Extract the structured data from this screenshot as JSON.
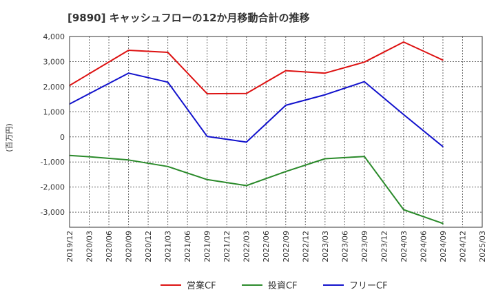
{
  "chart_data": {
    "type": "line",
    "title": "[9890]  キャッシュフローの12か月移動合計の推移",
    "ylabel": "(百万円)",
    "xlabel": "",
    "ylim": [
      -3600,
      4000
    ],
    "yticks": [
      -3000,
      -2000,
      -1000,
      0,
      1000,
      2000,
      3000,
      4000
    ],
    "ytick_labels": [
      "-3,000",
      "-2,000",
      "-1,000",
      "0",
      "1,000",
      "2,000",
      "3,000",
      "4,000"
    ],
    "x_ticks": [
      "2019/12",
      "2020/03",
      "2020/06",
      "2020/09",
      "2020/12",
      "2021/03",
      "2021/06",
      "2021/09",
      "2021/12",
      "2022/03",
      "2022/06",
      "2022/09",
      "2022/12",
      "2023/03",
      "2023/06",
      "2023/09",
      "2023/12",
      "2024/03",
      "2024/06",
      "2024/09",
      "2024/12",
      "2025/03"
    ],
    "grid": true,
    "legend_position": "bottom",
    "series": [
      {
        "name": "営業CF",
        "color": "#dd1111",
        "points": [
          {
            "x": "2019/12",
            "y": 2050
          },
          {
            "x": "2020/09",
            "y": 3450
          },
          {
            "x": "2021/03",
            "y": 3370
          },
          {
            "x": "2021/09",
            "y": 1720
          },
          {
            "x": "2022/03",
            "y": 1730
          },
          {
            "x": "2022/09",
            "y": 2640
          },
          {
            "x": "2023/03",
            "y": 2540
          },
          {
            "x": "2023/09",
            "y": 2980
          },
          {
            "x": "2024/03",
            "y": 3780
          },
          {
            "x": "2024/09",
            "y": 3060
          }
        ]
      },
      {
        "name": "投資CF",
        "color": "#2a8a2a",
        "points": [
          {
            "x": "2019/12",
            "y": -740
          },
          {
            "x": "2020/03",
            "y": -790
          },
          {
            "x": "2020/09",
            "y": -920
          },
          {
            "x": "2021/03",
            "y": -1180
          },
          {
            "x": "2021/09",
            "y": -1700
          },
          {
            "x": "2022/03",
            "y": -1940
          },
          {
            "x": "2022/09",
            "y": -1380
          },
          {
            "x": "2023/03",
            "y": -870
          },
          {
            "x": "2023/09",
            "y": -780
          },
          {
            "x": "2024/03",
            "y": -2900
          },
          {
            "x": "2024/09",
            "y": -3450
          }
        ]
      },
      {
        "name": "フリーCF",
        "color": "#1111cc",
        "points": [
          {
            "x": "2019/12",
            "y": 1310
          },
          {
            "x": "2020/09",
            "y": 2540
          },
          {
            "x": "2021/03",
            "y": 2180
          },
          {
            "x": "2021/09",
            "y": 20
          },
          {
            "x": "2022/03",
            "y": -210
          },
          {
            "x": "2022/09",
            "y": 1260
          },
          {
            "x": "2023/03",
            "y": 1680
          },
          {
            "x": "2023/09",
            "y": 2200
          },
          {
            "x": "2024/03",
            "y": 890
          },
          {
            "x": "2024/09",
            "y": -390
          }
        ]
      }
    ]
  }
}
